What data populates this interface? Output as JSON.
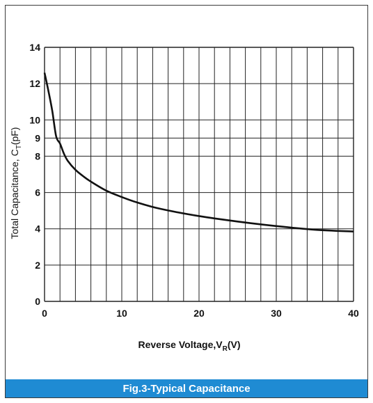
{
  "chart_data": {
    "type": "line",
    "title": "",
    "x_label": {
      "main": "Reverse Voltage,V",
      "sub": "R",
      "tail": "(V)"
    },
    "y_label": {
      "main": "Total Capacitance, C",
      "sub": "T",
      "tail": "(pF)"
    },
    "x_ticks": [
      0,
      10,
      20,
      30,
      40
    ],
    "y_ticks": [
      0,
      2,
      4,
      6,
      8,
      9,
      10,
      12,
      14
    ],
    "xlim": [
      0,
      40
    ],
    "ylim": [
      0,
      14
    ],
    "grid": true,
    "x_grid_step": 2,
    "series": [
      {
        "x": [
          0,
          0.5,
          1,
          1.5,
          2,
          2.5,
          3,
          4,
          5,
          6,
          8,
          10,
          12,
          15,
          20,
          25,
          30,
          35,
          40
        ],
        "y": [
          12.6,
          11.6,
          10.5,
          9.1,
          8.7,
          8.15,
          7.75,
          7.25,
          6.9,
          6.6,
          6.1,
          5.75,
          5.45,
          5.1,
          4.7,
          4.4,
          4.15,
          3.95,
          3.85
        ]
      }
    ]
  },
  "caption": "Fig.3-Typical  Capacitance",
  "colors": {
    "caption_bg": "#1f8bd3",
    "line": "#111111",
    "grid": "#222222"
  }
}
